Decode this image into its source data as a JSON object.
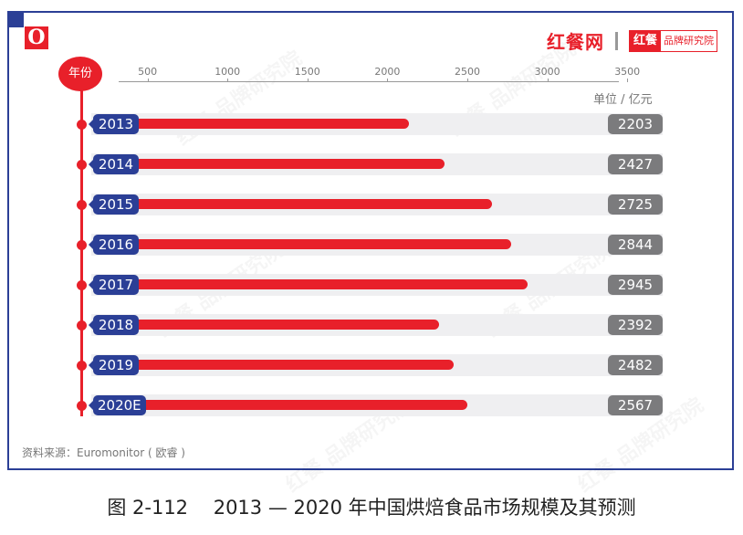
{
  "brand": {
    "logo_mark": "O",
    "main": "红餐网",
    "box_left": "红餐",
    "box_right": "品牌研究院"
  },
  "axis": {
    "year_label": "年份",
    "unit": "单位 / 亿元",
    "ticks": [
      "500",
      "1000",
      "1500",
      "2000",
      "2500",
      "3000",
      "3500"
    ]
  },
  "rows": [
    {
      "year": "2013",
      "value": "2203"
    },
    {
      "year": "2014",
      "value": "2427"
    },
    {
      "year": "2015",
      "value": "2725"
    },
    {
      "year": "2016",
      "value": "2844"
    },
    {
      "year": "2017",
      "value": "2945"
    },
    {
      "year": "2018",
      "value": "2392"
    },
    {
      "year": "2019",
      "value": "2482"
    },
    {
      "year": "2020E",
      "value": "2567"
    }
  ],
  "source": "资料来源：Euromonitor ( 欧睿 )",
  "caption": "图 2-112　 2013 — 2020 年中国烘焙食品市场规模及其预测",
  "colors": {
    "accent_red": "#e8202a",
    "frame_blue": "#2b3f96",
    "value_gray": "#7b7b7d",
    "track_gray": "#efeff1"
  },
  "chart_data": {
    "type": "bar",
    "orientation": "horizontal",
    "title": "2013 — 2020 年中国烘焙食品市场规模及其预测",
    "figure_number": "图 2-112",
    "categories": [
      "2013",
      "2014",
      "2015",
      "2016",
      "2017",
      "2018",
      "2019",
      "2020E"
    ],
    "values": [
      2203,
      2427,
      2725,
      2844,
      2945,
      2392,
      2482,
      2567
    ],
    "xlabel": "单位 / 亿元",
    "ylabel": "年份",
    "xticks": [
      500,
      1000,
      1500,
      2000,
      2500,
      3000,
      3500
    ],
    "xlim": [
      0,
      3500
    ],
    "grid": false,
    "legend": null,
    "source": "Euromonitor ( 欧睿 )"
  }
}
